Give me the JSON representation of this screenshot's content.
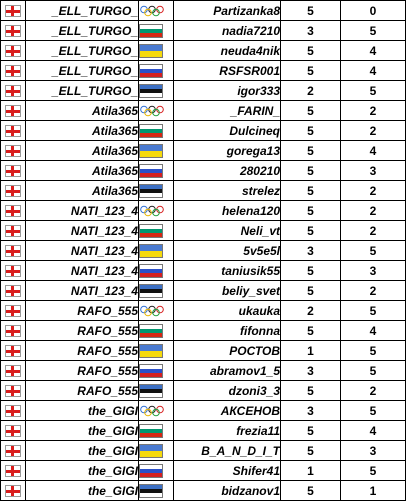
{
  "colors": {
    "georgia_red": "#d91c1c",
    "grid": "#000000"
  },
  "rows": [
    {
      "p1": "_ELL_TURGO_",
      "flag": "olympic-rings-icon",
      "p2": "Partizanka8",
      "s1": "5",
      "s2": "0"
    },
    {
      "p1": "_ELL_TURGO_",
      "flag": "bulgaria-flag-icon",
      "p2": "nadia7210",
      "s1": "3",
      "s2": "5"
    },
    {
      "p1": "_ELL_TURGO_",
      "flag": "ukraine-flag-icon",
      "p2": "neuda4nik",
      "s1": "5",
      "s2": "4"
    },
    {
      "p1": "_ELL_TURGO_",
      "flag": "russia-flag-icon",
      "p2": "RSFSR001",
      "s1": "5",
      "s2": "4"
    },
    {
      "p1": "_ELL_TURGO_",
      "flag": "estonia-flag-icon",
      "p2": "igor333",
      "s1": "2",
      "s2": "5"
    },
    {
      "p1": "Atila365",
      "flag": "olympic-rings-icon",
      "p2": "_FARIN_",
      "s1": "5",
      "s2": "2"
    },
    {
      "p1": "Atila365",
      "flag": "bulgaria-flag-icon",
      "p2": "Dulcineq",
      "s1": "5",
      "s2": "2"
    },
    {
      "p1": "Atila365",
      "flag": "ukraine-flag-icon",
      "p2": "gorega13",
      "s1": "5",
      "s2": "4"
    },
    {
      "p1": "Atila365",
      "flag": "russia-flag-icon",
      "p2": "280210",
      "s1": "5",
      "s2": "3"
    },
    {
      "p1": "Atila365",
      "flag": "estonia-flag-icon",
      "p2": "strelez",
      "s1": "5",
      "s2": "2"
    },
    {
      "p1": "NATI_123_4",
      "flag": "olympic-rings-icon",
      "p2": "helena120",
      "s1": "5",
      "s2": "2"
    },
    {
      "p1": "NATI_123_4",
      "flag": "bulgaria-flag-icon",
      "p2": "Neli_vt",
      "s1": "5",
      "s2": "2"
    },
    {
      "p1": "NATI_123_4",
      "flag": "ukraine-flag-icon",
      "p2": "5v5e5l",
      "s1": "3",
      "s2": "5"
    },
    {
      "p1": "NATI_123_4",
      "flag": "russia-flag-icon",
      "p2": "taniusik55",
      "s1": "5",
      "s2": "3"
    },
    {
      "p1": "NATI_123_4",
      "flag": "estonia-flag-icon",
      "p2": "beliy_svet",
      "s1": "5",
      "s2": "2"
    },
    {
      "p1": "RAFO_555",
      "flag": "olympic-rings-icon",
      "p2": "ukauka",
      "s1": "2",
      "s2": "5"
    },
    {
      "p1": "RAFO_555",
      "flag": "bulgaria-flag-icon",
      "p2": "fifonna",
      "s1": "5",
      "s2": "4"
    },
    {
      "p1": "RAFO_555",
      "flag": "ukraine-flag-icon",
      "p2": "РОСТОВ",
      "s1": "1",
      "s2": "5",
      "s1_bold": true
    },
    {
      "p1": "RAFO_555",
      "flag": "russia-flag-icon",
      "p2": "abramov1_5",
      "s1": "3",
      "s2": "5"
    },
    {
      "p1": "RAFO_555",
      "flag": "estonia-flag-icon",
      "p2": "dzoni3_3",
      "s1": "5",
      "s2": "2"
    },
    {
      "p1": "the_GIGI",
      "flag": "olympic-rings-icon",
      "p2": "АКСЕНОВ",
      "s1": "3",
      "s2": "5"
    },
    {
      "p1": "the_GIGI",
      "flag": "bulgaria-flag-icon",
      "p2": "frezia11",
      "s1": "5",
      "s2": "4"
    },
    {
      "p1": "the_GIGI",
      "flag": "ukraine-flag-icon",
      "p2": "B_A_N_D_I_T",
      "s1": "5",
      "s2": "3"
    },
    {
      "p1": "the_GIGI",
      "flag": "russia-flag-icon",
      "p2": "Shifer41",
      "s1": "1",
      "s2": "5",
      "s1_bold": true
    },
    {
      "p1": "the_GIGI",
      "flag": "estonia-flag-icon",
      "p2": "bidzanov1",
      "s1": "5",
      "s2": "1"
    }
  ]
}
